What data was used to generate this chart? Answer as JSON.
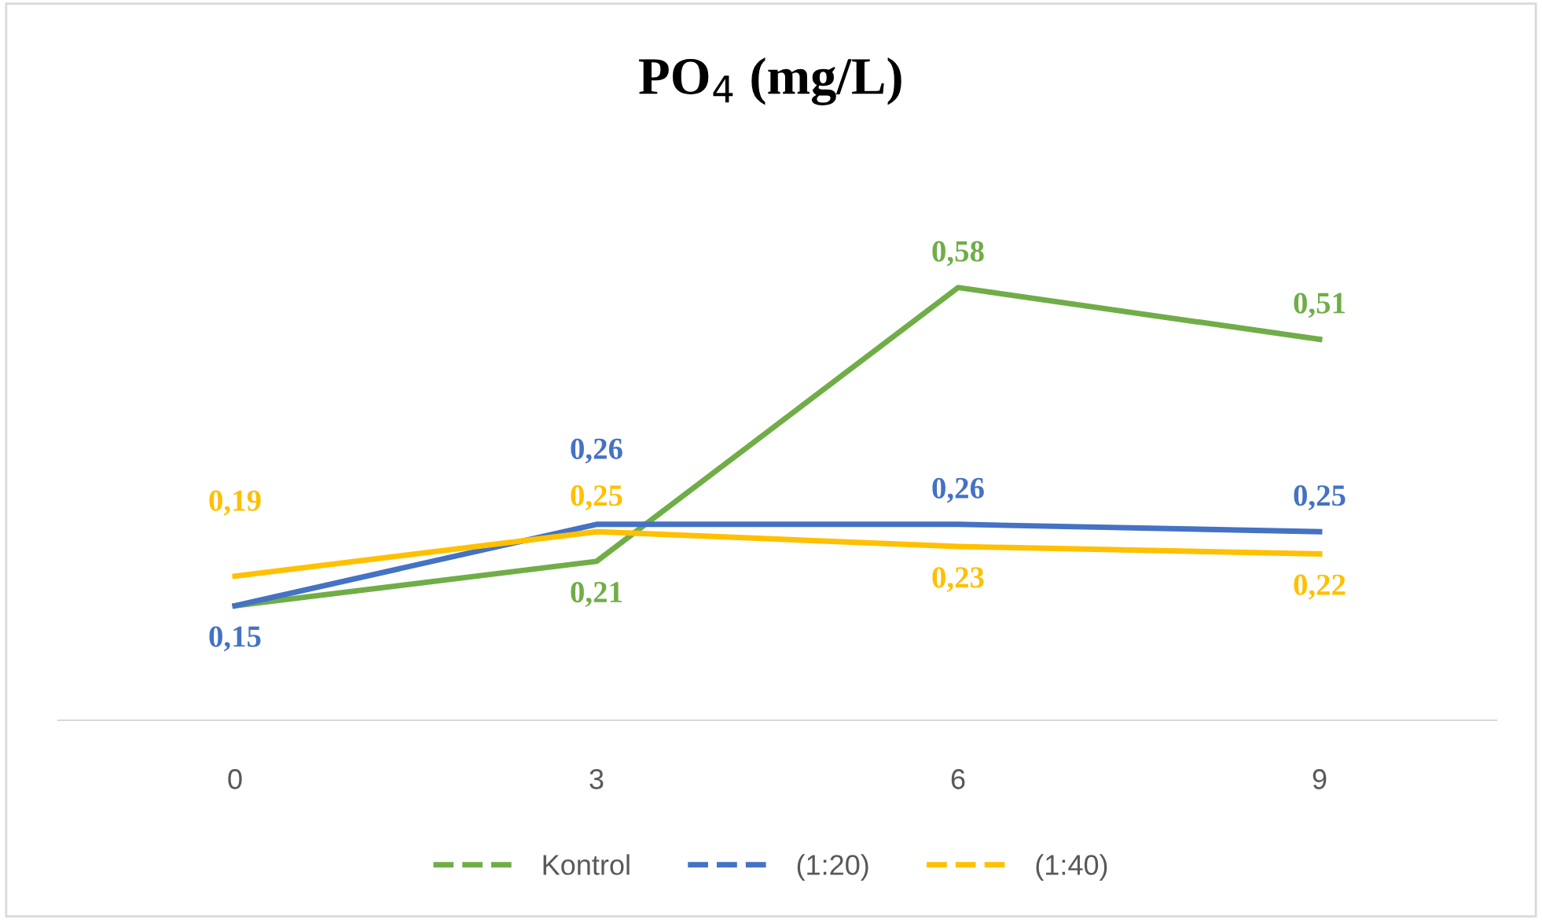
{
  "chart_data": {
    "type": "line",
    "title": "PO$_{4}$ (mg/L)",
    "categories": [
      "0",
      "3",
      "6",
      "9"
    ],
    "series": [
      {
        "name": "Kontrol",
        "color": "#70ad47",
        "values": [
          0.15,
          0.21,
          0.58,
          0.51
        ],
        "value_labels": [
          null,
          "0,21",
          "0,58",
          "0,51"
        ]
      },
      {
        "name": "(1:20)",
        "color": "#4472c4",
        "values": [
          0.15,
          0.26,
          0.26,
          0.25
        ],
        "value_labels": [
          "0,15",
          "0,26",
          "0,26",
          "0,25"
        ]
      },
      {
        "name": "(1:40)",
        "color": "#ffc000",
        "values": [
          0.19,
          0.25,
          0.23,
          0.22
        ],
        "value_labels": [
          "0,19",
          "0,25",
          "0,23",
          "0,22"
        ]
      }
    ],
    "tick_labels": "x",
    "legend": "bottom",
    "grid": false,
    "marker": "none",
    "line_style": "solid"
  }
}
